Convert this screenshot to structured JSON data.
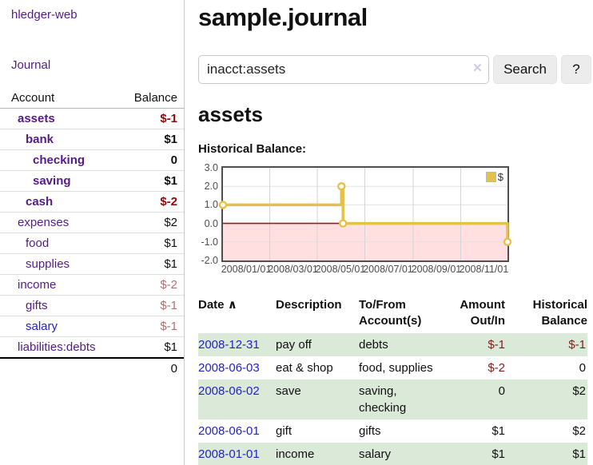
{
  "app": {
    "brand": "hledger-web",
    "nav_journal": "Journal"
  },
  "sidebar": {
    "col_account": "Account",
    "col_balance": "Balance",
    "accounts": [
      {
        "name": "assets",
        "balance": "$-1"
      },
      {
        "name": "bank",
        "balance": "$1"
      },
      {
        "name": "checking",
        "balance": "0"
      },
      {
        "name": "saving",
        "balance": "$1"
      },
      {
        "name": "cash",
        "balance": "$-2"
      },
      {
        "name": "expenses",
        "balance": "$2"
      },
      {
        "name": "food",
        "balance": "$1"
      },
      {
        "name": "supplies",
        "balance": "$1"
      },
      {
        "name": "income",
        "balance": "$-2"
      },
      {
        "name": "gifts",
        "balance": "$-1"
      },
      {
        "name": "salary",
        "balance": "$-1"
      },
      {
        "name": "liabilities:debts",
        "balance": "$1"
      }
    ],
    "total": "0"
  },
  "header": {
    "title": "sample.journal"
  },
  "search": {
    "value": "inacct:assets",
    "clear_icon": "×",
    "button_label": "Search",
    "help_label": "?"
  },
  "account_page": {
    "heading": "assets",
    "section_label": "Historical Balance:"
  },
  "chart_data": {
    "type": "line",
    "title": "Historical Balance",
    "series": [
      {
        "name": "$",
        "color": "#e6c14a",
        "step": true,
        "points": [
          [
            "2008-01-01",
            1
          ],
          [
            "2008-06-01",
            2
          ],
          [
            "2008-06-03",
            0
          ],
          [
            "2008-12-31",
            -1
          ]
        ]
      }
    ],
    "xlim": [
      "2008-01-01",
      "2008-12-31"
    ],
    "ylim": [
      -2,
      3
    ],
    "xticks": [
      "2008/01/01",
      "2008/03/01",
      "2008/05/01",
      "2008/07/01",
      "2008/09/01",
      "2008/11/01"
    ],
    "yticks": [
      "3.0",
      "2.0",
      "1.0",
      "0.0",
      "-1.0",
      "-2.0"
    ],
    "legend": {
      "label": "$",
      "position": "top-right"
    },
    "grid": true,
    "negative_region_color": "#ffdfdf",
    "zero_line_color": "#9e1a1a"
  },
  "register": {
    "columns": {
      "date": "Date",
      "sort_indicator": "∧",
      "description": "Description",
      "accounts": "To/From Account(s)",
      "amount": "Amount Out/In",
      "balance": "Historical Balance"
    },
    "rows": [
      {
        "date": "2008-12-31",
        "description": "pay off",
        "accounts": "debts",
        "amount": "$-1",
        "balance": "$-1"
      },
      {
        "date": "2008-06-03",
        "description": "eat & shop",
        "accounts": "food, supplies",
        "amount": "$-2",
        "balance": "0"
      },
      {
        "date": "2008-06-02",
        "description": "save",
        "accounts": "saving, checking",
        "amount": "0",
        "balance": "$2"
      },
      {
        "date": "2008-06-01",
        "description": "gift",
        "accounts": "gifts",
        "amount": "$1",
        "balance": "$2"
      },
      {
        "date": "2008-01-01",
        "description": "income",
        "accounts": "salary",
        "amount": "$1",
        "balance": "$1"
      }
    ]
  },
  "colors": {
    "link_purple": "#551a8b",
    "link_blue": "#2222cc",
    "negative_strong": "#8e0b0b",
    "negative_soft": "#b07070",
    "row_stripe_green": "#dbe9d8",
    "chart_line_gold": "#e6c14a",
    "chart_negative_pink": "#ffdfdf",
    "chart_zero_red": "#9e1a1a"
  }
}
